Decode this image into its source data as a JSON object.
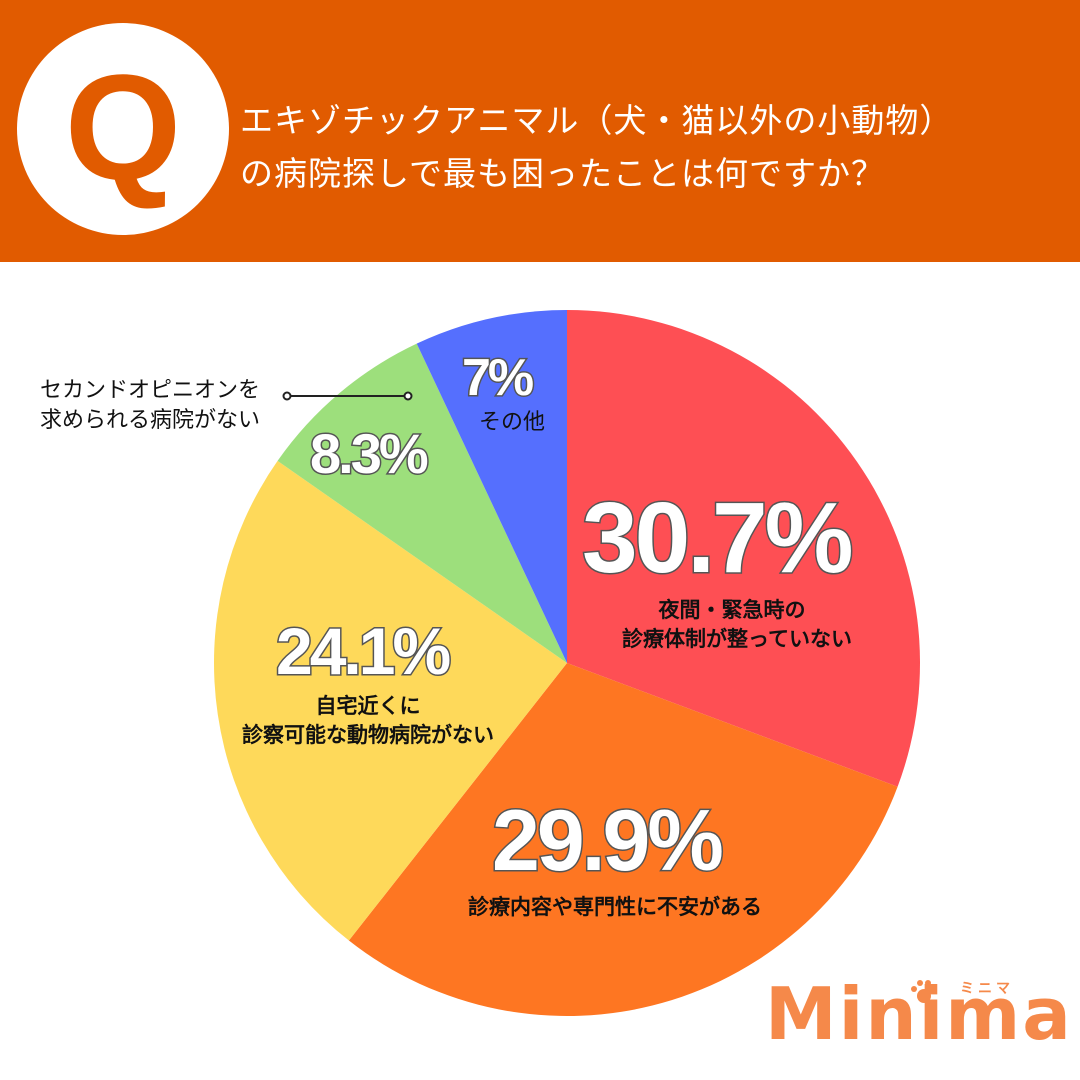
{
  "header": {
    "q_badge": "Q",
    "title_line1": "エキゾチックアニマル（犬・猫以外の小動物）",
    "title_line2": "の病院探しで最も困ったことは何ですか？",
    "background_color": "#e15b00"
  },
  "chart_data": {
    "type": "pie",
    "title": "エキゾチックアニマル（犬・猫以外の小動物）の病院探しで最も困ったことは何ですか？",
    "start_angle": "12 o'clock, clockwise",
    "categories": [
      "夜間・緊急時の診療体制が整っていない",
      "診療内容や専門性に不安がある",
      "自宅近くに診察可能な動物病院がない",
      "セカンドオピニオンを求められる病院がない",
      "その他"
    ],
    "values": [
      30.7,
      29.9,
      24.1,
      8.3,
      7
    ],
    "unit": "%",
    "colors": [
      "#fe4f54",
      "#fe7622",
      "#fed95a",
      "#9ddf7c",
      "#556ffe"
    ],
    "legend": "none (labels placed on slices)",
    "slices": [
      {
        "pct_label": "30.7%",
        "label_line1": "夜間・緊急時の",
        "label_line2": "診療体制が整っていない"
      },
      {
        "pct_label": "29.9%",
        "label_line1": "診療内容や専門性に不安がある",
        "label_line2": ""
      },
      {
        "pct_label": "24.1%",
        "label_line1": "自宅近くに",
        "label_line2": "診察可能な動物病院がない"
      },
      {
        "pct_label": "8.3%",
        "label_line1": "セカンドオピニオンを",
        "label_line2": "求められる病院がない"
      },
      {
        "pct_label": "7%",
        "label_line1": "その他",
        "label_line2": ""
      }
    ]
  },
  "logo": {
    "text": "Minima",
    "kana": "ミニマ",
    "color": "#f5894a"
  }
}
